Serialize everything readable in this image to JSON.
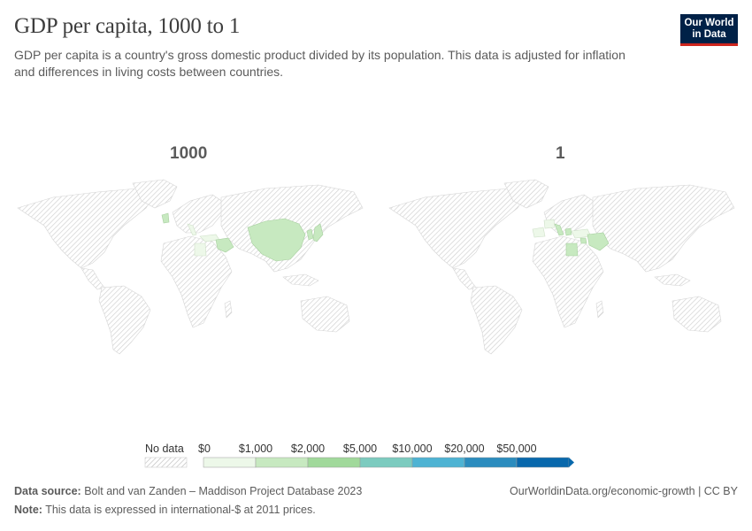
{
  "header": {
    "title": "GDP per capita, 1000 to 1",
    "subtitle": "GDP per capita is a country's gross domestic product divided by its population. This data is adjusted for inflation and differences in living costs between countries.",
    "logo_line1": "Our World",
    "logo_line2": "in Data"
  },
  "maps": [
    {
      "label": "1000",
      "highlighted": [
        "china",
        "korea",
        "japan",
        "egypt",
        "iran",
        "iraq",
        "turkey",
        "italy",
        "uk"
      ]
    },
    {
      "label": "1",
      "highlighted": [
        "egypt",
        "iran",
        "iraq",
        "turkey",
        "italy",
        "spain",
        "france",
        "greece",
        "levant"
      ]
    }
  ],
  "legend": {
    "no_data_label": "No data",
    "bins": [
      "$0",
      "$1,000",
      "$2,000",
      "$5,000",
      "$10,000",
      "$20,000",
      "$50,000"
    ],
    "colors": [
      "#edf8e9",
      "#c7e9c0",
      "#a1d99b",
      "#7ccbbf",
      "#4eb3d3",
      "#2b8cbe",
      "#0868ac"
    ]
  },
  "footer": {
    "source_label": "Data source:",
    "source_text": "Bolt and van Zanden – Maddison Project Database 2023",
    "note_label": "Note:",
    "note_text": "This data is expressed in international-$ at 2011 prices.",
    "url_text": "OurWorldinData.org/economic-growth | CC BY"
  }
}
